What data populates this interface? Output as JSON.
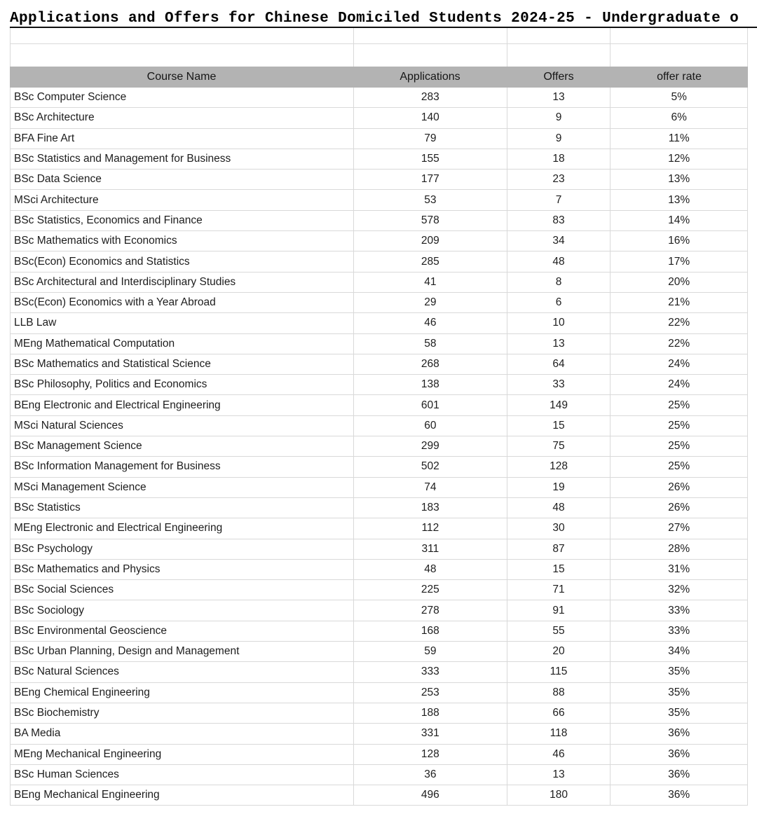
{
  "title": "Applications and Offers for Chinese Domiciled Students 2024-25 - Undergraduate o",
  "colors": {
    "header_bg": "#b3b3b3",
    "gridline": "#d9d9d9",
    "text": "#1d1d1d"
  },
  "table": {
    "columns": [
      "Course Name",
      "Applications",
      "Offers",
      "offer rate"
    ],
    "rows": [
      {
        "course": "BSc Computer Science",
        "applications": "283",
        "offers": "13",
        "offer_rate": "5%"
      },
      {
        "course": "BSc Architecture",
        "applications": "140",
        "offers": "9",
        "offer_rate": "6%"
      },
      {
        "course": "BFA Fine Art",
        "applications": "79",
        "offers": "9",
        "offer_rate": "11%"
      },
      {
        "course": "BSc Statistics and Management for Business",
        "applications": "155",
        "offers": "18",
        "offer_rate": "12%"
      },
      {
        "course": "BSc Data Science",
        "applications": "177",
        "offers": "23",
        "offer_rate": "13%"
      },
      {
        "course": "MSci Architecture",
        "applications": "53",
        "offers": "7",
        "offer_rate": "13%"
      },
      {
        "course": "BSc Statistics, Economics and Finance",
        "applications": "578",
        "offers": "83",
        "offer_rate": "14%"
      },
      {
        "course": "BSc Mathematics with Economics",
        "applications": "209",
        "offers": "34",
        "offer_rate": "16%"
      },
      {
        "course": "BSc(Econ) Economics and Statistics",
        "applications": "285",
        "offers": "48",
        "offer_rate": "17%"
      },
      {
        "course": "BSc Architectural and Interdisciplinary Studies",
        "applications": "41",
        "offers": "8",
        "offer_rate": "20%"
      },
      {
        "course": "BSc(Econ) Economics with a Year Abroad",
        "applications": "29",
        "offers": "6",
        "offer_rate": "21%"
      },
      {
        "course": "LLB Law",
        "applications": "46",
        "offers": "10",
        "offer_rate": "22%"
      },
      {
        "course": "MEng Mathematical Computation",
        "applications": "58",
        "offers": "13",
        "offer_rate": "22%"
      },
      {
        "course": "BSc Mathematics and Statistical Science",
        "applications": "268",
        "offers": "64",
        "offer_rate": "24%"
      },
      {
        "course": "BSc Philosophy, Politics and Economics",
        "applications": "138",
        "offers": "33",
        "offer_rate": "24%"
      },
      {
        "course": "BEng Electronic and Electrical Engineering",
        "applications": "601",
        "offers": "149",
        "offer_rate": "25%"
      },
      {
        "course": "MSci Natural Sciences",
        "applications": "60",
        "offers": "15",
        "offer_rate": "25%"
      },
      {
        "course": "BSc Management Science",
        "applications": "299",
        "offers": "75",
        "offer_rate": "25%"
      },
      {
        "course": "BSc Information Management for Business",
        "applications": "502",
        "offers": "128",
        "offer_rate": "25%"
      },
      {
        "course": "MSci Management Science",
        "applications": "74",
        "offers": "19",
        "offer_rate": "26%"
      },
      {
        "course": "BSc Statistics",
        "applications": "183",
        "offers": "48",
        "offer_rate": "26%"
      },
      {
        "course": "MEng Electronic and Electrical Engineering",
        "applications": "112",
        "offers": "30",
        "offer_rate": "27%"
      },
      {
        "course": "BSc Psychology",
        "applications": "311",
        "offers": "87",
        "offer_rate": "28%"
      },
      {
        "course": "BSc Mathematics and Physics",
        "applications": "48",
        "offers": "15",
        "offer_rate": "31%"
      },
      {
        "course": "BSc Social Sciences",
        "applications": "225",
        "offers": "71",
        "offer_rate": "32%"
      },
      {
        "course": "BSc Sociology",
        "applications": "278",
        "offers": "91",
        "offer_rate": "33%"
      },
      {
        "course": "BSc Environmental Geoscience",
        "applications": "168",
        "offers": "55",
        "offer_rate": "33%"
      },
      {
        "course": "BSc Urban Planning, Design and Management",
        "applications": "59",
        "offers": "20",
        "offer_rate": "34%"
      },
      {
        "course": "BSc Natural Sciences",
        "applications": "333",
        "offers": "115",
        "offer_rate": "35%"
      },
      {
        "course": "BEng Chemical Engineering",
        "applications": "253",
        "offers": "88",
        "offer_rate": "35%"
      },
      {
        "course": "BSc Biochemistry",
        "applications": "188",
        "offers": "66",
        "offer_rate": "35%"
      },
      {
        "course": "BA Media",
        "applications": "331",
        "offers": "118",
        "offer_rate": "36%"
      },
      {
        "course": "MEng Mechanical Engineering",
        "applications": "128",
        "offers": "46",
        "offer_rate": "36%"
      },
      {
        "course": "BSc Human Sciences",
        "applications": "36",
        "offers": "13",
        "offer_rate": "36%"
      },
      {
        "course": "BEng Mechanical Engineering",
        "applications": "496",
        "offers": "180",
        "offer_rate": "36%"
      }
    ]
  }
}
